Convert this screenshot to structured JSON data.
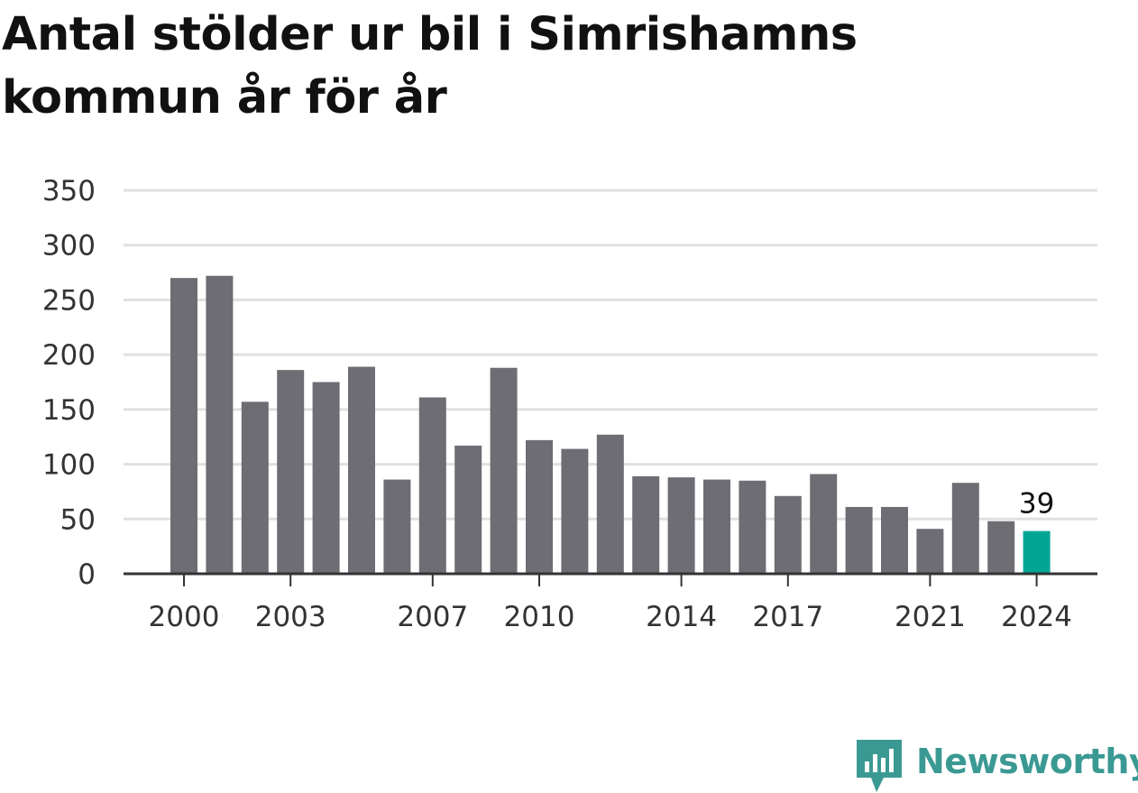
{
  "header": {
    "title": "Antal stölder ur bil i Simrishamns kommun år för år"
  },
  "chart_data": {
    "type": "bar",
    "title": "Antal stölder ur bil i Simrishamns kommun år för år",
    "xlabel": "",
    "ylabel": "",
    "categories": [
      "2000",
      "2001",
      "2002",
      "2003",
      "2004",
      "2005",
      "2006",
      "2007",
      "2008",
      "2009",
      "2010",
      "2011",
      "2012",
      "2013",
      "2014",
      "2015",
      "2016",
      "2017",
      "2018",
      "2019",
      "2020",
      "2021",
      "2022",
      "2023",
      "2024"
    ],
    "values": [
      270,
      272,
      157,
      186,
      175,
      189,
      86,
      161,
      117,
      188,
      122,
      114,
      127,
      89,
      88,
      86,
      85,
      71,
      91,
      61,
      61,
      41,
      83,
      48,
      39
    ],
    "ylim": [
      0,
      350
    ],
    "y_ticks": [
      0,
      50,
      100,
      150,
      200,
      250,
      300,
      350
    ],
    "x_tick_labels": [
      "2000",
      "2003",
      "2007",
      "2010",
      "2014",
      "2017",
      "2021",
      "2024"
    ],
    "highlight_category": "2024",
    "data_labels": [
      {
        "category": "2024",
        "text": "39"
      }
    ],
    "grid": true,
    "legend": "none",
    "colors": {
      "bar": "#6e6d74",
      "highlight": "#00a596",
      "grid": "#e0e0e0",
      "axis": "#333333",
      "tick_text": "#333333"
    }
  },
  "footer": {
    "logo_text": "Newsworthy",
    "logo_icon": "speech-bubble-bar-chart-icon",
    "logo_color": "#3b9993"
  }
}
